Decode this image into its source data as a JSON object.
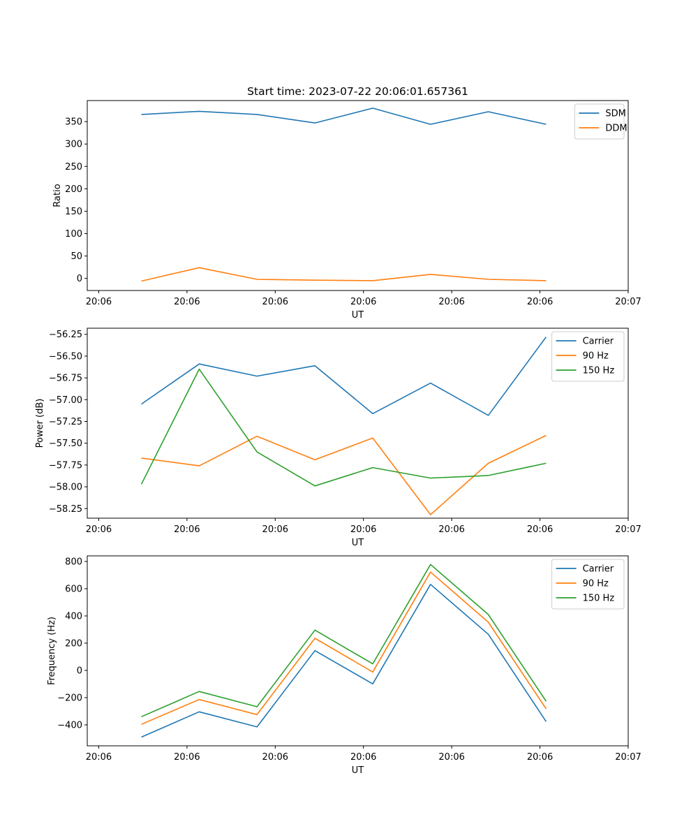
{
  "chart_data": [
    {
      "type": "line",
      "title": "Start time: 2023-07-22 20:06:01.657361",
      "xlabel": "UT",
      "ylabel": "Ratio",
      "x_tick_labels": [
        "20:06",
        "20:06",
        "20:06",
        "20:06",
        "20:06",
        "20:06",
        "20:07"
      ],
      "x_ticks": [
        0,
        1,
        2,
        3,
        4,
        5,
        6
      ],
      "xlim": [
        -0.13,
        6.0
      ],
      "x": [
        0.484,
        1.139,
        1.794,
        2.45,
        3.105,
        3.76,
        4.415,
        5.07
      ],
      "y_ticks": [
        0,
        50,
        100,
        150,
        200,
        250,
        300,
        350
      ],
      "y_tick_labels": [
        "0",
        "50",
        "100",
        "150",
        "200",
        "250",
        "300",
        "350"
      ],
      "ylim": [
        -27,
        397
      ],
      "legend_position": "top-right",
      "grid": false,
      "series": [
        {
          "name": "SDM",
          "color": "#1f77b4",
          "values": [
            366,
            373,
            366,
            347,
            380,
            344,
            372,
            344
          ]
        },
        {
          "name": "DDM",
          "color": "#ff7f0e",
          "values": [
            -6,
            24,
            -2,
            -4,
            -5,
            9,
            -2,
            -5
          ]
        }
      ]
    },
    {
      "type": "line",
      "title": "",
      "xlabel": "UT",
      "ylabel": "Power (dB)",
      "x_tick_labels": [
        "20:06",
        "20:06",
        "20:06",
        "20:06",
        "20:06",
        "20:06",
        "20:07"
      ],
      "x_ticks": [
        0,
        1,
        2,
        3,
        4,
        5,
        6
      ],
      "xlim": [
        -0.13,
        6.0
      ],
      "x": [
        0.484,
        1.139,
        1.794,
        2.45,
        3.105,
        3.76,
        4.415,
        5.07
      ],
      "y_ticks": [
        -58.25,
        -58.0,
        -57.75,
        -57.5,
        -57.25,
        -57.0,
        -56.75,
        -56.5,
        -56.25
      ],
      "y_tick_labels": [
        "−58.25",
        "−58.00",
        "−57.75",
        "−57.50",
        "−57.25",
        "−57.00",
        "−56.75",
        "−56.50",
        "−56.25"
      ],
      "ylim": [
        -58.36,
        -56.18
      ],
      "legend_position": "top-right",
      "grid": false,
      "series": [
        {
          "name": "Carrier",
          "color": "#1f77b4",
          "values": [
            -57.05,
            -56.59,
            -56.73,
            -56.61,
            -57.16,
            -56.81,
            -57.18,
            -56.28
          ]
        },
        {
          "name": "90 Hz",
          "color": "#ff7f0e",
          "values": [
            -57.67,
            -57.76,
            -57.42,
            -57.69,
            -57.44,
            -58.32,
            -57.73,
            -57.41
          ]
        },
        {
          "name": "150 Hz",
          "color": "#2ca02c",
          "values": [
            -57.97,
            -56.65,
            -57.6,
            -57.99,
            -57.78,
            -57.9,
            -57.87,
            -57.73
          ]
        }
      ]
    },
    {
      "type": "line",
      "title": "",
      "xlabel": "UT",
      "ylabel": "Frequency (Hz)",
      "x_tick_labels": [
        "20:06",
        "20:06",
        "20:06",
        "20:06",
        "20:06",
        "20:06",
        "20:07"
      ],
      "x_ticks": [
        0,
        1,
        2,
        3,
        4,
        5,
        6
      ],
      "xlim": [
        -0.13,
        6.0
      ],
      "x": [
        0.484,
        1.139,
        1.794,
        2.45,
        3.105,
        3.76,
        4.415,
        5.07
      ],
      "y_ticks": [
        -400,
        -200,
        0,
        200,
        400,
        600,
        800
      ],
      "y_tick_labels": [
        "−400",
        "−200",
        "0",
        "200",
        "400",
        "600",
        "800"
      ],
      "ylim": [
        -554,
        841
      ],
      "legend_position": "top-right",
      "grid": false,
      "series": [
        {
          "name": "Carrier",
          "color": "#1f77b4",
          "values": [
            -490,
            -304,
            -415,
            145,
            -99,
            632,
            265,
            -376
          ]
        },
        {
          "name": "90 Hz",
          "color": "#ff7f0e",
          "values": [
            -396,
            -214,
            -325,
            236,
            -12,
            722,
            354,
            -282
          ]
        },
        {
          "name": "150 Hz",
          "color": "#2ca02c",
          "values": [
            -340,
            -155,
            -267,
            296,
            48,
            778,
            410,
            -227
          ]
        }
      ]
    }
  ]
}
